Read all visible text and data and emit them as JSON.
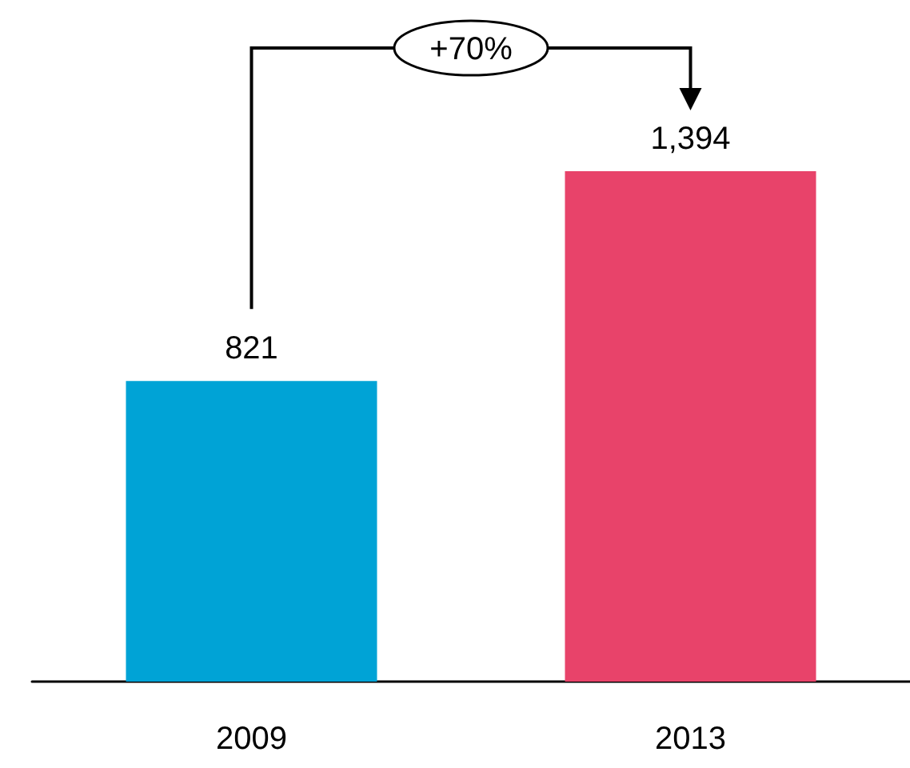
{
  "chart_data": {
    "type": "bar",
    "categories": [
      "2009",
      "2013"
    ],
    "values": [
      821,
      1394
    ],
    "colors": [
      "#00a3d6",
      "#e8436a"
    ],
    "value_labels": [
      "821",
      "1,394"
    ],
    "annotations": [
      "+70%"
    ]
  }
}
